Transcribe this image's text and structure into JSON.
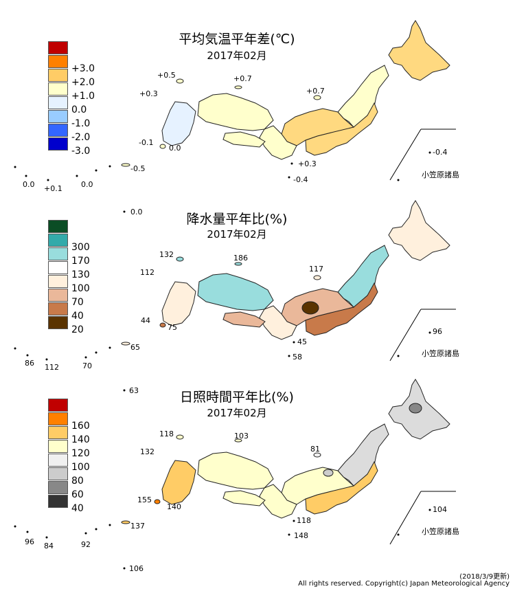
{
  "panels": [
    {
      "title": "平均気温平年差(℃)",
      "subtitle": "2017年02月",
      "legend": [
        {
          "label": "",
          "color": "#c00000"
        },
        {
          "label": "+3.0",
          "color": "#ff8000"
        },
        {
          "label": "+2.0",
          "color": "#ffcc66"
        },
        {
          "label": "+1.0",
          "color": "#ffffcc"
        },
        {
          "label": "0.0",
          "color": "#e6f2ff"
        },
        {
          "label": "-1.0",
          "color": "#99ccff"
        },
        {
          "label": "-2.0",
          "color": "#3366ff"
        },
        {
          "label": "-3.0",
          "color": "#0000cc"
        }
      ],
      "labels": [
        "+0.5",
        "+0.7",
        "+0.7",
        "+0.3",
        "-0.1",
        "0.0",
        "+0.3",
        "-0.4",
        "-0.5",
        "0.0",
        "+0.1",
        "0.0",
        "-0.4"
      ],
      "island_name": "小笠原諸島",
      "map_colors": {
        "hokkaido": "#ffd980",
        "tohoku": "#ffffcc",
        "kanto": "#ffd980",
        "chubu": "#ffd980",
        "kinki": "#ffffcc",
        "chugoku": "#ffffcc",
        "shikoku": "#ffffcc",
        "kyushu": "#e6f2ff"
      }
    },
    {
      "title": "降水量平年比(%)",
      "subtitle": "2017年02月",
      "legend": [
        {
          "label": "",
          "color": "#0b4d25"
        },
        {
          "label": "300",
          "color": "#33aaaa"
        },
        {
          "label": "170",
          "color": "#99dddd"
        },
        {
          "label": "130",
          "color": "#ffffff"
        },
        {
          "label": "100",
          "color": "#fff0dd"
        },
        {
          "label": "70",
          "color": "#eab89a"
        },
        {
          "label": "40",
          "color": "#c87a4a"
        },
        {
          "label": "20",
          "color": "#5a3300"
        }
      ],
      "labels": [
        "132",
        "186",
        "117",
        "112",
        "44",
        "75",
        "65",
        "86",
        "112",
        "70",
        "0.0",
        "45",
        "58",
        "96"
      ],
      "island_name": "小笠原諸島",
      "map_colors": {
        "hokkaido": "#fff0dd",
        "tohoku": "#99dddd",
        "kanto": "#c87a4a",
        "chubu": "#eab89a",
        "kinki": "#fff0dd",
        "chugoku": "#99dddd",
        "shikoku": "#eab89a",
        "kyushu": "#fff0dd"
      }
    },
    {
      "title": "日照時間平年比(%)",
      "subtitle": "2017年02月",
      "legend": [
        {
          "label": "",
          "color": "#c00000"
        },
        {
          "label": "160",
          "color": "#ff8000"
        },
        {
          "label": "140",
          "color": "#ffcc66"
        },
        {
          "label": "120",
          "color": "#ffffcc"
        },
        {
          "label": "100",
          "color": "#f0f0f0"
        },
        {
          "label": "80",
          "color": "#cccccc"
        },
        {
          "label": "60",
          "color": "#888888"
        },
        {
          "label": "40",
          "color": "#333333"
        }
      ],
      "labels": [
        "118",
        "103",
        "132",
        "81",
        "155",
        "140",
        "137",
        "96",
        "84",
        "92",
        "63",
        "118",
        "148",
        "106",
        "104"
      ],
      "island_name": "小笠原諸島",
      "map_colors": {
        "hokkaido": "#dcdcdc",
        "tohoku": "#dcdcdc",
        "kanto": "#ffcc66",
        "chubu": "#ffffcc",
        "kinki": "#ffffcc",
        "chugoku": "#ffffcc",
        "shikoku": "#ffffcc",
        "kyushu": "#ffcc66"
      }
    }
  ],
  "footer": {
    "date": "(2018/3/9更新)",
    "copyright": "All rights reserved. Copyright(c) Japan Meteorological Agency"
  }
}
